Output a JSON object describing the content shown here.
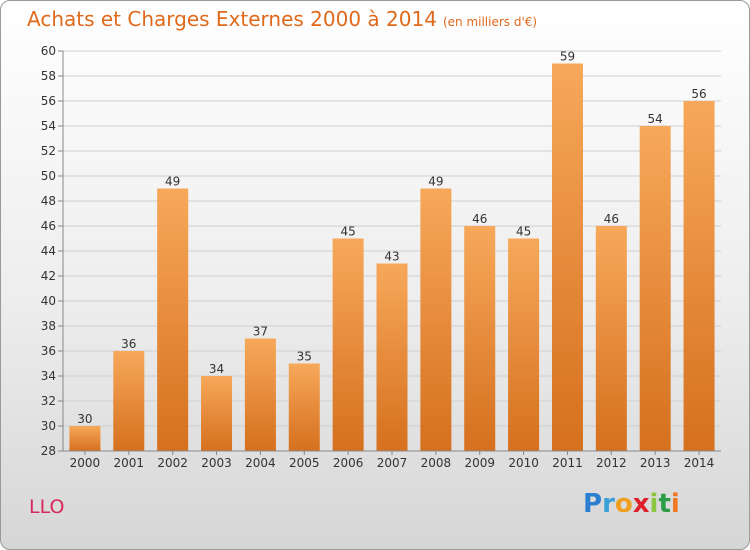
{
  "header": {
    "title": "Achats et Charges Externes 2000 à 2014",
    "subtitle": "(en milliers d'€)"
  },
  "footer": {
    "location": "LLO",
    "logo_letters": [
      "P",
      "r",
      "o",
      "x",
      "i",
      "t",
      "i"
    ]
  },
  "colors": {
    "title": "#e06a1c",
    "bar_top": "#f7a85a",
    "bar_bottom": "#d5701e",
    "location": "#d6285a"
  },
  "chart_data": {
    "type": "bar",
    "title": "Achats et Charges Externes 2000 à 2014",
    "subtitle": "(en milliers d'€)",
    "categories": [
      "2000",
      "2001",
      "2002",
      "2003",
      "2004",
      "2005",
      "2006",
      "2007",
      "2008",
      "2009",
      "2010",
      "2011",
      "2012",
      "2013",
      "2014"
    ],
    "values": [
      30,
      36,
      49,
      34,
      37,
      35,
      45,
      43,
      49,
      46,
      45,
      59,
      46,
      54,
      56
    ],
    "ylim": [
      28,
      60
    ],
    "yticks": [
      28,
      30,
      32,
      34,
      36,
      38,
      40,
      42,
      44,
      46,
      48,
      50,
      52,
      54,
      56,
      58,
      60
    ],
    "grid": true,
    "data_labels": true
  }
}
